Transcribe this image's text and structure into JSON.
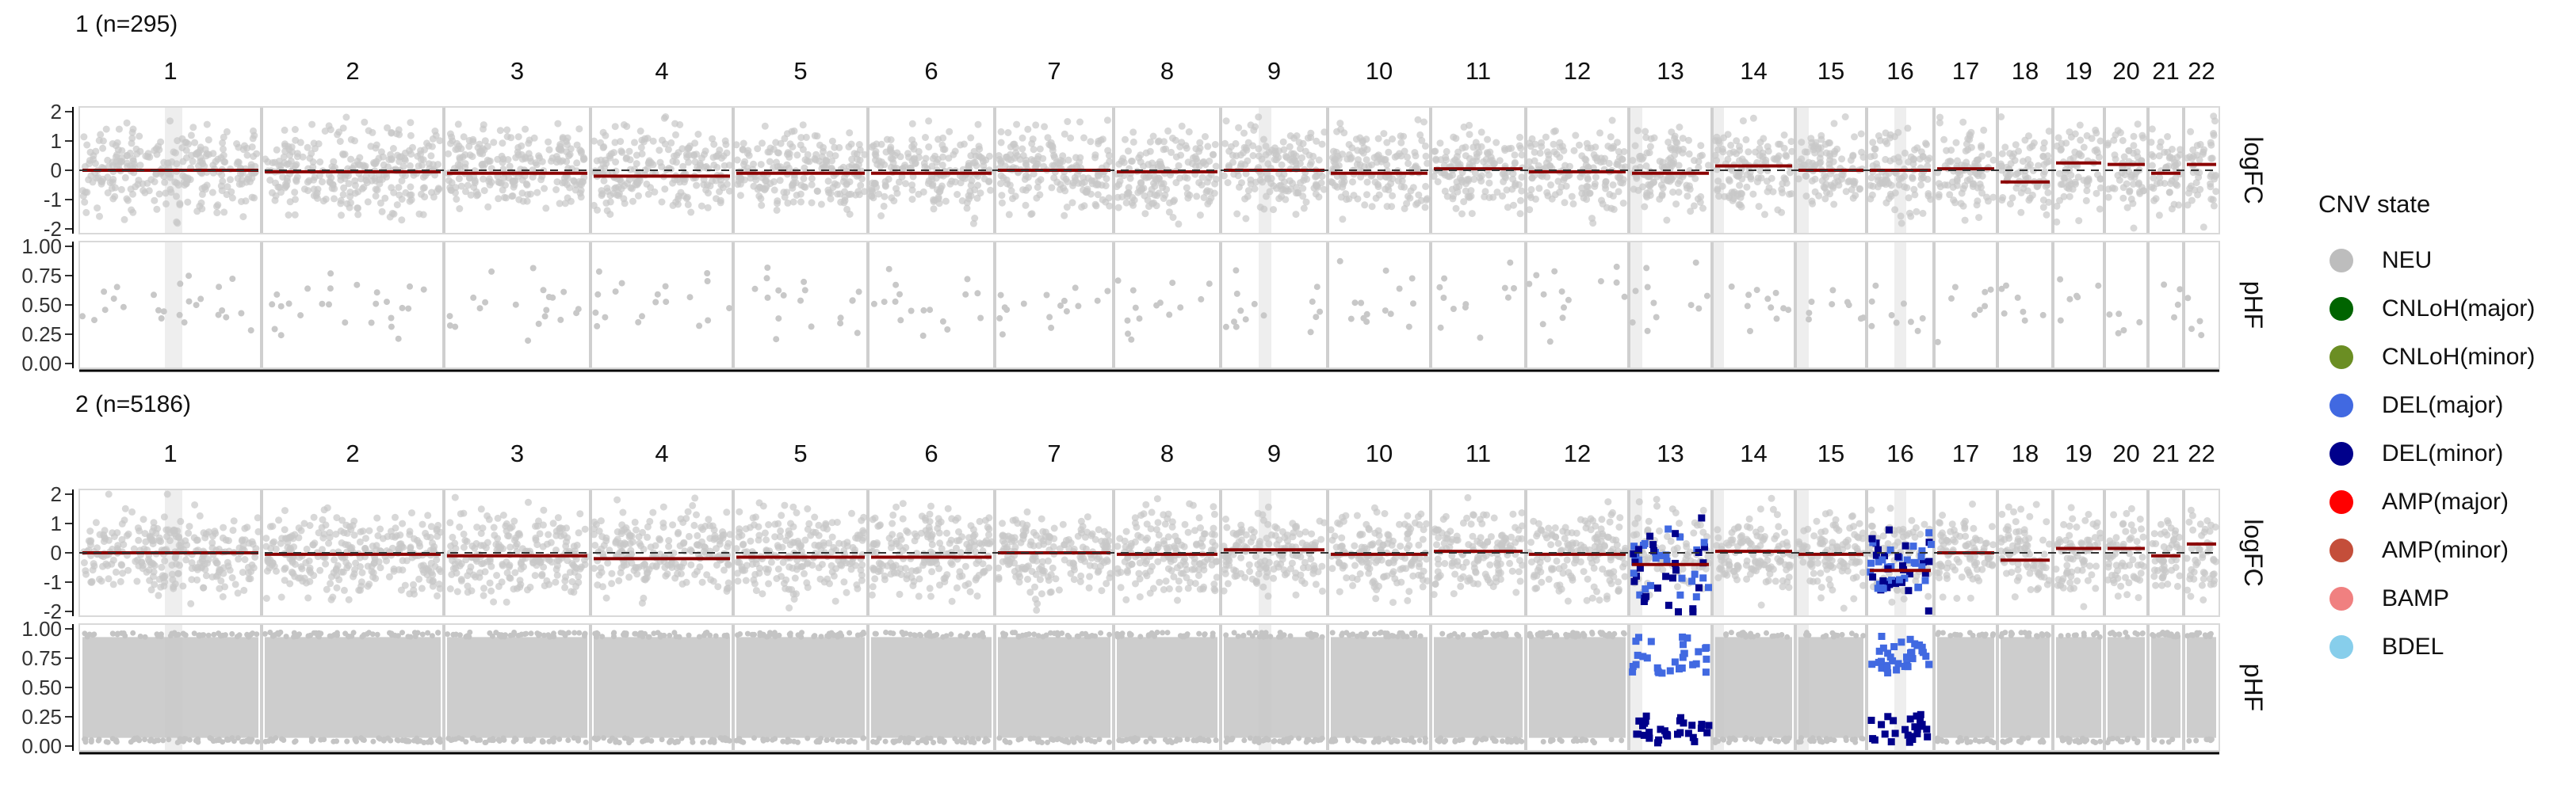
{
  "chart_data": {
    "type": "scatter",
    "title": "",
    "chromosomes": [
      "1",
      "2",
      "3",
      "4",
      "5",
      "6",
      "7",
      "8",
      "9",
      "10",
      "11",
      "12",
      "13",
      "14",
      "15",
      "16",
      "17",
      "18",
      "19",
      "20",
      "21",
      "22"
    ],
    "tracks": [
      {
        "label": "logFC",
        "y_ticks": [
          "2",
          "1",
          "0",
          "-1",
          "-2"
        ],
        "ylim": [
          -2,
          2
        ]
      },
      {
        "label": "pHF",
        "y_ticks": [
          "1.00",
          "0.75",
          "0.50",
          "0.25",
          "0.00"
        ],
        "ylim": [
          0,
          1
        ]
      }
    ],
    "panels": [
      {
        "title": "1 (n=295)",
        "segment_logFC": [
          0.0,
          -0.05,
          -0.1,
          -0.2,
          -0.1,
          -0.1,
          0.0,
          -0.05,
          0.0,
          -0.1,
          0.05,
          -0.05,
          -0.1,
          0.15,
          0.0,
          0.0,
          0.05,
          -0.4,
          0.25,
          0.2,
          -0.1,
          0.2
        ],
        "phf_point_density": "sparse"
      },
      {
        "title": "2 (n=5186)",
        "segment_logFC": [
          0.0,
          -0.05,
          -0.1,
          -0.2,
          -0.15,
          -0.15,
          0.0,
          -0.05,
          0.1,
          -0.05,
          0.05,
          -0.05,
          -0.4,
          0.05,
          -0.05,
          -0.6,
          0.0,
          -0.25,
          0.15,
          0.15,
          -0.1,
          0.3
        ],
        "phf_point_density": "dense",
        "highlighted": [
          {
            "chromosome": "13",
            "states": [
              "DEL(major)",
              "DEL(minor)"
            ]
          },
          {
            "chromosome": "16",
            "states": [
              "DEL(major)",
              "DEL(minor)"
            ]
          }
        ]
      }
    ],
    "legend": {
      "title": "CNV state",
      "placement": "right",
      "items": [
        {
          "label": "NEU",
          "color": "#bdbdbd"
        },
        {
          "label": "CNLoH(major)",
          "color": "#006400"
        },
        {
          "label": "CNLoH(minor)",
          "color": "#6b8e23"
        },
        {
          "label": "DEL(major)",
          "color": "#4169e1"
        },
        {
          "label": "DEL(minor)",
          "color": "#00008b"
        },
        {
          "label": "AMP(major)",
          "color": "#ff0000"
        },
        {
          "label": "AMP(minor)",
          "color": "#c44e3a"
        },
        {
          "label": "BAMP",
          "color": "#f08080"
        },
        {
          "label": "BDEL",
          "color": "#87ceeb"
        }
      ]
    },
    "colors": {
      "point": "#bdbdbd",
      "segment": "#8b0000",
      "excluded_band": "#eeeeee"
    }
  }
}
